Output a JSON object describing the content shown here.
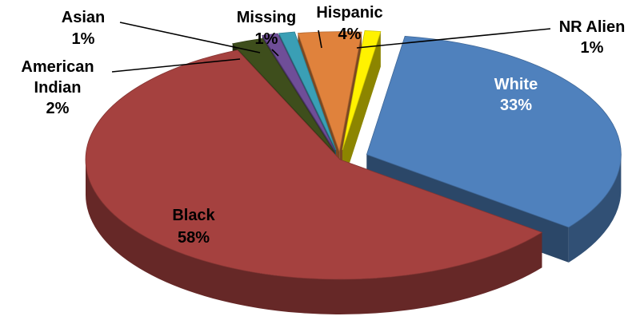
{
  "chart_data": {
    "type": "pie",
    "title": "",
    "categories": [
      "White",
      "Black",
      "American Indian",
      "Asian",
      "Missing",
      "Hispanic",
      "NR Alien"
    ],
    "values": [
      33,
      58,
      2,
      1,
      1,
      4,
      1
    ],
    "value_labels": [
      "33%",
      "58%",
      "2%",
      "1%",
      "1%",
      "4%",
      "1%"
    ],
    "colors": {
      "White": "#4F81BD",
      "Black": "#A5413F",
      "American Indian": "#3E4E1C",
      "Asian": "#6F4E98",
      "Missing": "#3A9FB5",
      "Hispanic": "#E0823C",
      "NR Alien": "#FFF200"
    },
    "legend": "none",
    "style": "3d-exploded"
  }
}
